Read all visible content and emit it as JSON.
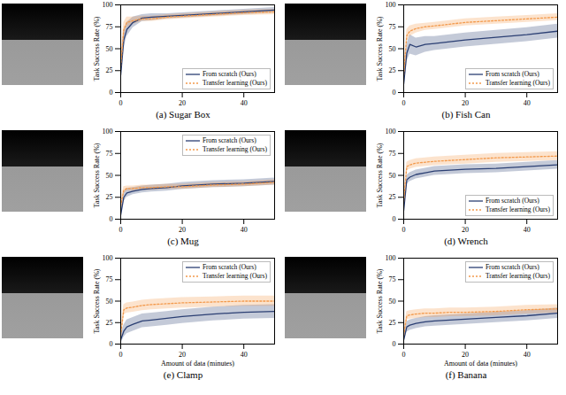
{
  "chart_data": [
    {
      "type": "line",
      "title": "(a) Sugar Box",
      "y_label": "Task Success Rate (%)",
      "x": [
        0,
        1,
        2,
        4,
        7,
        10,
        15,
        20,
        30,
        40,
        50
      ],
      "xlim": [
        0,
        50
      ],
      "xticks": [
        0,
        20,
        40
      ],
      "ylim": [
        0,
        100
      ],
      "yticks": [
        0,
        25,
        50,
        75,
        100
      ],
      "legend": "lower right",
      "series": [
        {
          "name": "From scratch (Ours)",
          "color": "#2b3f73",
          "line_style": "solid",
          "values": [
            20,
            60,
            72,
            80,
            85,
            86,
            87,
            88,
            90,
            92,
            94
          ],
          "lower": [
            10,
            50,
            64,
            74,
            81,
            82,
            84,
            85,
            87,
            89,
            91
          ],
          "upper": [
            30,
            70,
            80,
            86,
            89,
            90,
            90,
            91,
            93,
            95,
            97
          ]
        },
        {
          "name": "Transfer learning (Ours)",
          "color": "#f39a4c",
          "line_style": "dotted",
          "values": [
            30,
            72,
            80,
            82,
            84,
            84,
            86,
            87,
            89,
            91,
            92
          ],
          "lower": [
            20,
            64,
            74,
            78,
            81,
            81,
            83,
            84,
            86,
            88,
            89
          ],
          "upper": [
            40,
            80,
            86,
            86,
            87,
            87,
            89,
            90,
            92,
            94,
            95
          ]
        }
      ]
    },
    {
      "type": "line",
      "title": "(b) Fish Can",
      "y_label": "Task Success Rate (%)",
      "x": [
        0,
        1,
        2,
        4,
        7,
        10,
        15,
        20,
        30,
        40,
        50
      ],
      "xlim": [
        0,
        50
      ],
      "xticks": [
        0,
        20,
        40
      ],
      "ylim": [
        0,
        100
      ],
      "yticks": [
        0,
        25,
        50,
        75,
        100
      ],
      "legend": "lower right",
      "series": [
        {
          "name": "From scratch (Ours)",
          "color": "#2b3f73",
          "line_style": "solid",
          "values": [
            10,
            45,
            55,
            52,
            55,
            56,
            58,
            60,
            63,
            66,
            70
          ],
          "lower": [
            0,
            35,
            44,
            42,
            46,
            48,
            50,
            52,
            55,
            58,
            62
          ],
          "upper": [
            20,
            55,
            66,
            62,
            64,
            64,
            66,
            68,
            71,
            74,
            78
          ]
        },
        {
          "name": "Transfer learning (Ours)",
          "color": "#f39a4c",
          "line_style": "dotted",
          "values": [
            20,
            65,
            70,
            73,
            75,
            76,
            78,
            80,
            82,
            84,
            86
          ],
          "lower": [
            10,
            58,
            64,
            68,
            71,
            72,
            74,
            76,
            78,
            80,
            82
          ],
          "upper": [
            30,
            72,
            76,
            78,
            79,
            80,
            82,
            84,
            86,
            88,
            90
          ]
        }
      ]
    },
    {
      "type": "line",
      "title": "(c) Mug",
      "y_label": "Task Success Rate (%)",
      "x": [
        0,
        1,
        2,
        4,
        7,
        10,
        15,
        20,
        30,
        40,
        50
      ],
      "xlim": [
        0,
        50
      ],
      "xticks": [
        0,
        20,
        40
      ],
      "ylim": [
        0,
        100
      ],
      "yticks": [
        0,
        25,
        50,
        75,
        100
      ],
      "legend": "upper right",
      "series": [
        {
          "name": "From scratch (Ours)",
          "color": "#2b3f73",
          "line_style": "solid",
          "values": [
            5,
            25,
            30,
            32,
            34,
            35,
            36,
            38,
            40,
            41,
            43
          ],
          "lower": [
            0,
            20,
            25,
            28,
            30,
            31,
            32,
            34,
            36,
            37,
            39
          ],
          "upper": [
            10,
            30,
            35,
            36,
            38,
            39,
            40,
            42,
            44,
            45,
            47
          ]
        },
        {
          "name": "Transfer learning (Ours)",
          "color": "#f39a4c",
          "line_style": "dotted",
          "values": [
            15,
            33,
            35,
            35,
            36,
            36,
            37,
            37,
            39,
            40,
            42
          ],
          "lower": [
            8,
            29,
            32,
            32,
            33,
            33,
            34,
            34,
            36,
            37,
            39
          ],
          "upper": [
            22,
            37,
            38,
            38,
            39,
            39,
            40,
            40,
            42,
            43,
            45
          ]
        }
      ]
    },
    {
      "type": "line",
      "title": "(d) Wrench",
      "y_label": "Task Success Rate (%)",
      "x": [
        0,
        1,
        2,
        4,
        7,
        10,
        15,
        20,
        30,
        40,
        50
      ],
      "xlim": [
        0,
        50
      ],
      "xticks": [
        0,
        20,
        40
      ],
      "ylim": [
        0,
        100
      ],
      "yticks": [
        0,
        25,
        50,
        75,
        100
      ],
      "legend": "lower right",
      "series": [
        {
          "name": "From scratch (Ours)",
          "color": "#2b3f73",
          "line_style": "solid",
          "values": [
            10,
            45,
            48,
            51,
            53,
            55,
            56,
            57,
            58,
            60,
            62
          ],
          "lower": [
            2,
            40,
            43,
            46,
            48,
            50,
            51,
            52,
            53,
            55,
            57
          ],
          "upper": [
            18,
            50,
            53,
            56,
            58,
            60,
            61,
            62,
            63,
            65,
            67
          ]
        },
        {
          "name": "Transfer learning (Ours)",
          "color": "#f39a4c",
          "line_style": "dotted",
          "values": [
            20,
            60,
            62,
            64,
            65,
            66,
            67,
            68,
            70,
            71,
            72
          ],
          "lower": [
            12,
            55,
            57,
            59,
            60,
            61,
            62,
            63,
            65,
            66,
            67
          ],
          "upper": [
            28,
            65,
            67,
            69,
            70,
            71,
            72,
            73,
            75,
            76,
            77
          ]
        }
      ]
    },
    {
      "type": "line",
      "title": "(e) Clamp",
      "y_label": "Task Success Rate (%)",
      "x_label": "Amount of data (minutes)",
      "x": [
        0,
        1,
        2,
        4,
        7,
        10,
        15,
        20,
        30,
        40,
        50
      ],
      "xlim": [
        0,
        50
      ],
      "xticks": [
        0,
        20,
        40
      ],
      "ylim": [
        0,
        100
      ],
      "yticks": [
        0,
        25,
        50,
        75,
        100
      ],
      "legend": "upper right",
      "series": [
        {
          "name": "From scratch (Ours)",
          "color": "#2b3f73",
          "line_style": "solid",
          "values": [
            5,
            15,
            20,
            23,
            27,
            28,
            30,
            32,
            35,
            37,
            38
          ],
          "lower": [
            0,
            8,
            12,
            15,
            19,
            20,
            22,
            24,
            27,
            29,
            30
          ],
          "upper": [
            10,
            22,
            28,
            31,
            35,
            36,
            38,
            40,
            43,
            45,
            46
          ]
        },
        {
          "name": "Transfer learning (Ours)",
          "color": "#f39a4c",
          "line_style": "dotted",
          "values": [
            10,
            40,
            42,
            43,
            45,
            46,
            47,
            48,
            49,
            50,
            50
          ],
          "lower": [
            2,
            34,
            36,
            37,
            39,
            40,
            41,
            42,
            43,
            44,
            44
          ],
          "upper": [
            18,
            46,
            48,
            49,
            51,
            52,
            53,
            54,
            55,
            56,
            56
          ]
        }
      ]
    },
    {
      "type": "line",
      "title": "(f) Banana",
      "y_label": "Task Success Rate (%)",
      "x_label": "Amount of data (minutes)",
      "x": [
        0,
        1,
        2,
        4,
        7,
        10,
        15,
        20,
        30,
        40,
        50
      ],
      "xlim": [
        0,
        50
      ],
      "xticks": [
        0,
        20,
        40
      ],
      "ylim": [
        0,
        100
      ],
      "yticks": [
        0,
        25,
        50,
        75,
        100
      ],
      "legend": "upper right",
      "series": [
        {
          "name": "From scratch (Ours)",
          "color": "#2b3f73",
          "line_style": "solid",
          "values": [
            5,
            20,
            22,
            24,
            26,
            27,
            28,
            29,
            31,
            33,
            36
          ],
          "lower": [
            0,
            14,
            16,
            18,
            20,
            21,
            22,
            23,
            25,
            27,
            30
          ],
          "upper": [
            10,
            26,
            28,
            30,
            32,
            33,
            34,
            35,
            37,
            39,
            42
          ]
        },
        {
          "name": "Transfer learning (Ours)",
          "color": "#f39a4c",
          "line_style": "dotted",
          "values": [
            10,
            33,
            34,
            35,
            36,
            36,
            37,
            37,
            38,
            40,
            41
          ],
          "lower": [
            3,
            28,
            29,
            30,
            31,
            31,
            32,
            32,
            33,
            35,
            36
          ],
          "upper": [
            17,
            38,
            39,
            40,
            41,
            41,
            42,
            42,
            43,
            45,
            46
          ]
        }
      ]
    }
  ]
}
